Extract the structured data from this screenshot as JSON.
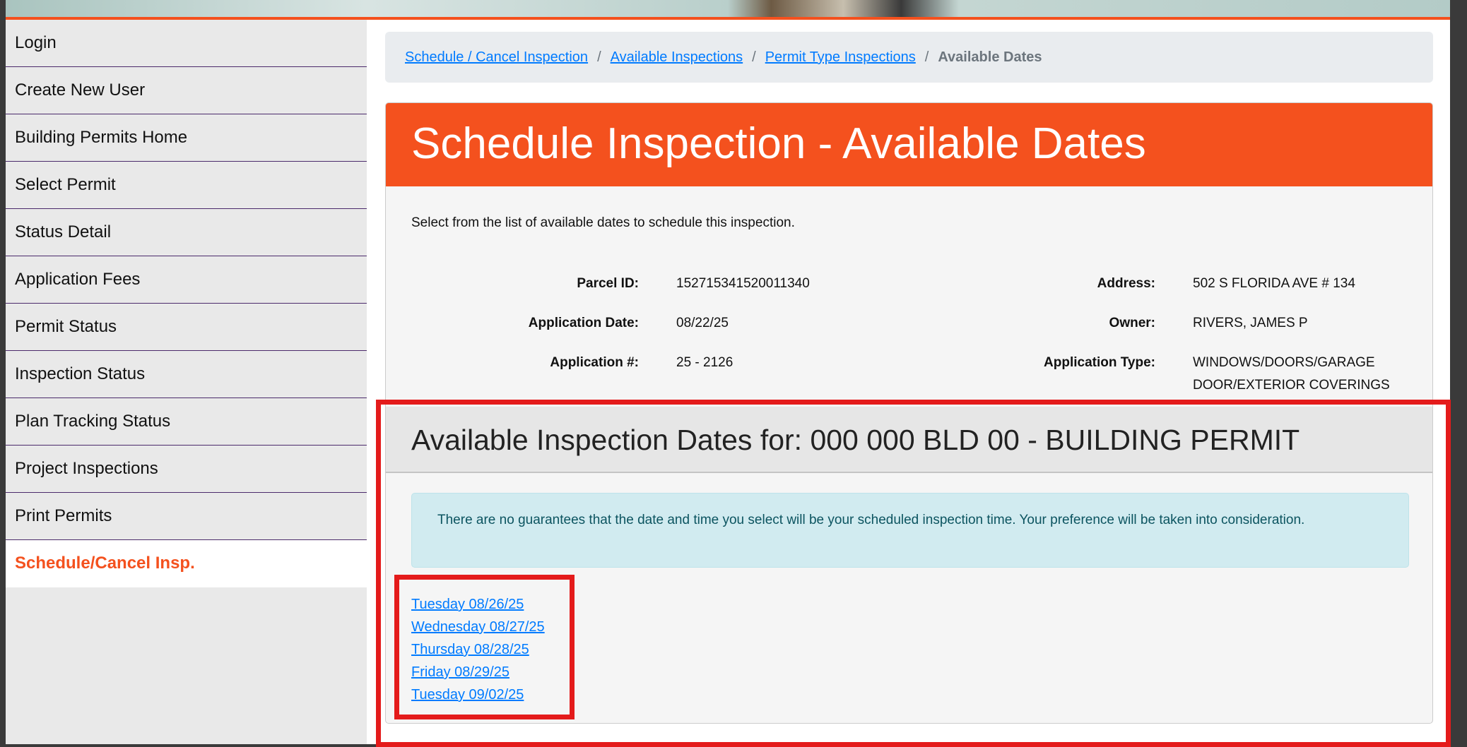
{
  "sidebar": {
    "items": [
      "Login",
      "Create New User",
      "Building Permits Home",
      "Select Permit",
      "Status Detail",
      "Application Fees",
      "Permit Status",
      "Inspection Status",
      "Plan Tracking Status",
      "Project Inspections",
      "Print Permits",
      "Schedule/Cancel Insp."
    ],
    "active": "Schedule/Cancel Insp."
  },
  "breadcrumb": {
    "links": [
      "Schedule / Cancel Inspection",
      "Available Inspections",
      "Permit Type Inspections"
    ],
    "separator": "/",
    "current": "Available Dates"
  },
  "panel": {
    "title": "Schedule Inspection - Available Dates",
    "intro": "Select from the list of available dates to schedule this inspection.",
    "parcel_label": "Parcel ID:",
    "parcel": "152715341520011340",
    "app_date_label": "Application Date:",
    "app_date": "08/22/25",
    "app_num_label": "Application #:",
    "app_num": "25 - 2126",
    "address_label": "Address:",
    "address": "502 S FLORIDA AVE # 134",
    "owner_label": "Owner:",
    "owner": "RIVERS, JAMES P",
    "app_type_label": "Application Type:",
    "app_type": "WINDOWS/DOORS/GARAGE DOOR/EXTERIOR COVERINGS"
  },
  "section": {
    "title": "Available Inspection Dates for: 000 000 BLD 00 - BUILDING PERMIT",
    "alert": "There are no guarantees that the date and time you select will be your scheduled inspection time. Your preference will be taken into consideration.",
    "dates": [
      "Tuesday 08/26/25",
      "Wednesday 08/27/25",
      "Thursday 08/28/25",
      "Friday 08/29/25",
      "Tuesday 09/02/25"
    ]
  },
  "colors": {
    "brand": "#f4511e",
    "link": "#007bff",
    "highlight": "#e41b1b"
  }
}
